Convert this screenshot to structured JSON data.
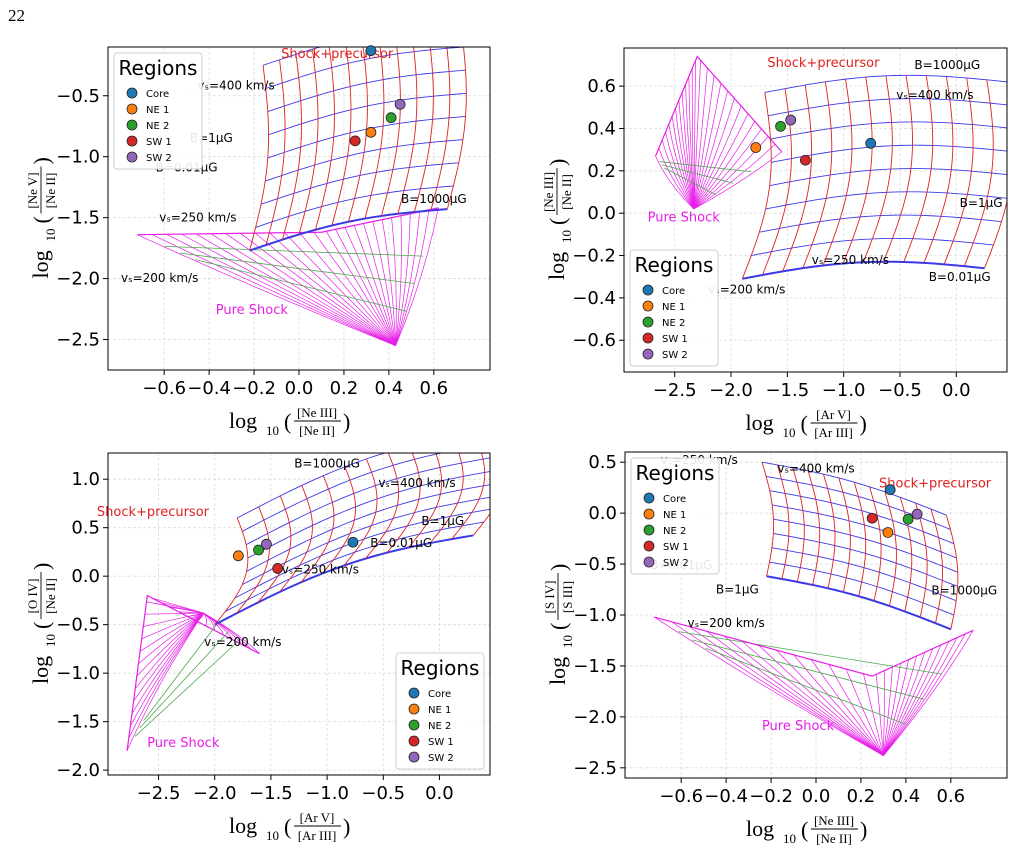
{
  "page_number": "22",
  "colors": {
    "shock_precursor": "#e02020",
    "grid_blue": "#3a3ae8",
    "pure_shock": "#e81ee8",
    "pure_shock_green": "#4aa84a",
    "Core": "#1f77b4",
    "NE 1": "#ff7f0e",
    "NE 2": "#2ca02c",
    "SW 1": "#d62728",
    "SW 2": "#9467bd"
  },
  "chart_data": [
    {
      "type": "scatter",
      "id": "ne5_ne2_vs_ne3_ne2",
      "xlabel": {
        "prefix": "log",
        "sub": "10",
        "num": "[Ne III]",
        "den": "[Ne II]"
      },
      "ylabel": {
        "prefix": "log",
        "sub": "10",
        "num": "[Ne V]",
        "den": "[Ne II]"
      },
      "xlim": [
        -0.85,
        0.85
      ],
      "ylim": [
        -2.75,
        -0.1
      ],
      "xticks": [
        -0.6,
        -0.4,
        -0.2,
        0.0,
        0.2,
        0.4,
        0.6
      ],
      "xtick_labels": [
        "−0.6",
        "−0.4",
        "−0.2",
        "0.0",
        "0.2",
        "0.4",
        "0.6"
      ],
      "yticks": [
        -2.5,
        -2.0,
        -1.5,
        -1.0,
        -0.5
      ],
      "ytick_labels": [
        "−2.5",
        "−2.0",
        "−1.5",
        "−1.0",
        "−0.5"
      ],
      "grid": true,
      "legend": {
        "title": "Regions",
        "placement": "top-left"
      },
      "points": [
        {
          "name": "Core",
          "x": 0.32,
          "y": -0.13
        },
        {
          "name": "NE 1",
          "x": 0.32,
          "y": -0.8
        },
        {
          "name": "NE 2",
          "x": 0.41,
          "y": -0.68
        },
        {
          "name": "SW 1",
          "x": 0.25,
          "y": -0.87
        },
        {
          "name": "SW 2",
          "x": 0.45,
          "y": -0.57
        }
      ],
      "annotations": [
        {
          "text": "Shock+precursor",
          "x": 0.17,
          "y": -0.19,
          "color": "red"
        },
        {
          "text": "vₛ=400 km/s",
          "x": -0.28,
          "y": -0.45,
          "color": "black"
        },
        {
          "text": "B=1μG",
          "x": -0.39,
          "y": -0.88,
          "color": "black"
        },
        {
          "text": "B=0.01μG",
          "x": -0.5,
          "y": -1.12,
          "color": "black"
        },
        {
          "text": "B=1000μG",
          "x": 0.6,
          "y": -1.38,
          "color": "black"
        },
        {
          "text": "vₛ=250 km/s",
          "x": -0.45,
          "y": -1.53,
          "color": "black"
        },
        {
          "text": "vₛ=200 km/s",
          "x": -0.62,
          "y": -2.03,
          "color": "black"
        },
        {
          "text": "Pure Shock",
          "x": -0.21,
          "y": -2.29,
          "color": "magenta"
        }
      ],
      "shock_grid": {
        "origin": [
          -0.22,
          -1.77
        ],
        "u": [
          0.88,
          0.34
        ],
        "v": [
          0.06,
          1.52
        ],
        "bend": 0.1,
        "n_velocity": 13,
        "n_field": 9
      },
      "pure_grid": {
        "origin": [
          -0.72,
          -1.64
        ],
        "fan_point": [
          0.43,
          -2.55
        ],
        "tops": [
          [
            -0.72,
            -1.64
          ],
          [
            0.1,
            -1.62
          ],
          [
            0.62,
            -1.42
          ]
        ],
        "n_lines": 26
      }
    },
    {
      "type": "scatter",
      "id": "ne3_ne2_vs_ar5_ar3",
      "xlabel": {
        "prefix": "log",
        "sub": "10",
        "num": "[Ar V]",
        "den": "[Ar III]"
      },
      "ylabel": {
        "prefix": "log",
        "sub": "10",
        "num": "[Ne III]",
        "den": "[Ne II]"
      },
      "xlim": [
        -2.95,
        0.45
      ],
      "ylim": [
        -0.75,
        0.78
      ],
      "xticks": [
        -2.5,
        -2.0,
        -1.5,
        -1.0,
        -0.5,
        0.0
      ],
      "xtick_labels": [
        "−2.5",
        "−2.0",
        "−1.5",
        "−1.0",
        "−0.5",
        "0.0"
      ],
      "yticks": [
        -0.6,
        -0.4,
        -0.2,
        0.0,
        0.2,
        0.4,
        0.6
      ],
      "ytick_labels": [
        "−0.6",
        "−0.4",
        "−0.2",
        "0.0",
        "0.2",
        "0.4",
        "0.6"
      ],
      "grid": true,
      "legend": {
        "title": "Regions",
        "placement": "bottom-left"
      },
      "points": [
        {
          "name": "Core",
          "x": -0.76,
          "y": 0.33
        },
        {
          "name": "NE 1",
          "x": -1.78,
          "y": 0.31
        },
        {
          "name": "NE 2",
          "x": -1.56,
          "y": 0.41
        },
        {
          "name": "SW 1",
          "x": -1.34,
          "y": 0.25
        },
        {
          "name": "SW 2",
          "x": -1.47,
          "y": 0.44
        }
      ],
      "annotations": [
        {
          "text": "Shock+precursor",
          "x": -1.18,
          "y": 0.69,
          "color": "red"
        },
        {
          "text": "B=1000μG",
          "x": -0.08,
          "y": 0.68,
          "color": "black"
        },
        {
          "text": "vₛ=400 km/s",
          "x": -0.19,
          "y": 0.54,
          "color": "black"
        },
        {
          "text": "B=1μG",
          "x": 0.22,
          "y": 0.03,
          "color": "black"
        },
        {
          "text": "vₛ=250 km/s",
          "x": -0.94,
          "y": -0.24,
          "color": "black"
        },
        {
          "text": "B=0.01μG",
          "x": 0.03,
          "y": -0.32,
          "color": "black"
        },
        {
          "text": "vₛ=200 km/s",
          "x": -1.86,
          "y": -0.38,
          "color": "black"
        },
        {
          "text": "Pure Shock",
          "x": -2.42,
          "y": -0.04,
          "color": "magenta"
        }
      ],
      "shock_grid": {
        "origin": [
          -1.9,
          -0.31
        ],
        "u": [
          2.15,
          0.05
        ],
        "v": [
          0.2,
          0.88
        ],
        "bend": 0.14,
        "n_velocity": 13,
        "n_field": 9
      },
      "pure_grid": {
        "origin": [
          -2.67,
          0.27
        ],
        "fan_point": [
          -2.33,
          0.02
        ],
        "tops": [
          [
            -2.67,
            0.27
          ],
          [
            -2.3,
            0.74
          ],
          [
            -1.55,
            0.29
          ]
        ],
        "n_lines": 26
      }
    },
    {
      "type": "scatter",
      "id": "o4_ne2_vs_ar5_ar3",
      "xlabel": {
        "prefix": "log",
        "sub": "10",
        "num": "[Ar V]",
        "den": "[Ar III]"
      },
      "ylabel": {
        "prefix": "log",
        "sub": "10",
        "num": "[O IV]",
        "den": "[Ne II]"
      },
      "xlim": [
        -2.95,
        0.45
      ],
      "ylim": [
        -2.05,
        1.27
      ],
      "xticks": [
        -2.5,
        -2.0,
        -1.5,
        -1.0,
        -0.5,
        0.0
      ],
      "xtick_labels": [
        "−2.5",
        "−2.0",
        "−1.5",
        "−1.0",
        "−0.5",
        "0.0"
      ],
      "yticks": [
        -2.0,
        -1.5,
        -1.0,
        -0.5,
        0.0,
        0.5,
        1.0
      ],
      "ytick_labels": [
        "−2.0",
        "−1.5",
        "−1.0",
        "−0.5",
        "0.0",
        "0.5",
        "1.0"
      ],
      "grid": true,
      "legend": {
        "title": "Regions",
        "placement": "bottom-right"
      },
      "points": [
        {
          "name": "Core",
          "x": -0.77,
          "y": 0.35
        },
        {
          "name": "NE 1",
          "x": -1.79,
          "y": 0.21
        },
        {
          "name": "NE 2",
          "x": -1.61,
          "y": 0.27
        },
        {
          "name": "SW 1",
          "x": -1.44,
          "y": 0.08
        },
        {
          "name": "SW 2",
          "x": -1.54,
          "y": 0.33
        }
      ],
      "annotations": [
        {
          "text": "B=1000μG",
          "x": -1.0,
          "y": 1.12,
          "color": "black"
        },
        {
          "text": "vₛ=400 km/s",
          "x": -0.2,
          "y": 0.92,
          "color": "black"
        },
        {
          "text": "Shock+precursor",
          "x": -2.55,
          "y": 0.62,
          "color": "red"
        },
        {
          "text": "B=1μG",
          "x": 0.03,
          "y": 0.53,
          "color": "black"
        },
        {
          "text": "B=0.01μG",
          "x": -0.34,
          "y": 0.3,
          "color": "black"
        },
        {
          "text": "vₛ=250 km/s",
          "x": -1.06,
          "y": 0.03,
          "color": "black"
        },
        {
          "text": "vₛ=200 km/s",
          "x": -1.75,
          "y": -0.72,
          "color": "black"
        },
        {
          "text": "Pure Shock",
          "x": -2.28,
          "y": -1.76,
          "color": "magenta"
        }
      ],
      "shock_grid": {
        "origin": [
          -2.0,
          -0.5
        ],
        "u": [
          2.3,
          0.92
        ],
        "v": [
          0.2,
          1.1
        ],
        "bend": 0.18,
        "n_velocity": 13,
        "n_field": 9
      },
      "pure_grid": {
        "origin": [
          -2.78,
          -1.8
        ],
        "fan_point": [
          -2.1,
          -0.38
        ],
        "tops": [
          [
            -2.78,
            -1.8
          ],
          [
            -2.6,
            -0.2
          ],
          [
            -1.6,
            -0.8
          ]
        ],
        "n_lines": 26
      }
    },
    {
      "type": "scatter",
      "id": "s4_s3_vs_ne3_ne2",
      "xlabel": {
        "prefix": "log",
        "sub": "10",
        "num": "[Ne III]",
        "den": "[Ne II]"
      },
      "ylabel": {
        "prefix": "log",
        "sub": "10",
        "num": "[S IV]",
        "den": "[S III]"
      },
      "xlim": [
        -0.85,
        0.85
      ],
      "ylim": [
        -2.6,
        0.6
      ],
      "xticks": [
        -0.6,
        -0.4,
        -0.2,
        0.0,
        0.2,
        0.4,
        0.6
      ],
      "xtick_labels": [
        "−0.6",
        "−0.4",
        "−0.2",
        "0.0",
        "0.2",
        "0.4",
        "0.6"
      ],
      "yticks": [
        -2.5,
        -2.0,
        -1.5,
        -1.0,
        -0.5,
        0.0,
        0.5
      ],
      "ytick_labels": [
        "−2.5",
        "−2.0",
        "−1.5",
        "−1.0",
        "−0.5",
        "0.0",
        "0.5"
      ],
      "grid": true,
      "legend": {
        "title": "Regions",
        "placement": "top-left"
      },
      "points": [
        {
          "name": "Core",
          "x": 0.33,
          "y": 0.23
        },
        {
          "name": "NE 1",
          "x": 0.32,
          "y": -0.19
        },
        {
          "name": "NE 2",
          "x": 0.41,
          "y": -0.06
        },
        {
          "name": "SW 1",
          "x": 0.25,
          "y": -0.05
        },
        {
          "name": "SW 2",
          "x": 0.45,
          "y": -0.01
        }
      ],
      "annotations": [
        {
          "text": "vₛ=250 km/s",
          "x": -0.52,
          "y": 0.48,
          "color": "black"
        },
        {
          "text": "vₛ=400 km/s",
          "x": 0.0,
          "y": 0.4,
          "color": "black"
        },
        {
          "text": "Shock+precursor",
          "x": 0.53,
          "y": 0.25,
          "color": "red"
        },
        {
          "text": "B=0.01μG",
          "x": -0.6,
          "y": -0.55,
          "color": "black"
        },
        {
          "text": "B=1μG",
          "x": -0.35,
          "y": -0.79,
          "color": "black"
        },
        {
          "text": "B=1000μG",
          "x": 0.66,
          "y": -0.8,
          "color": "black"
        },
        {
          "text": "vₛ=200 km/s",
          "x": -0.4,
          "y": -1.12,
          "color": "black"
        },
        {
          "text": "Pure Shock",
          "x": -0.08,
          "y": -2.13,
          "color": "magenta"
        }
      ],
      "shock_grid": {
        "origin": [
          -0.22,
          -0.62
        ],
        "u": [
          0.82,
          -0.52
        ],
        "v": [
          -0.02,
          1.12
        ],
        "bend": 0.08,
        "n_velocity": 13,
        "n_field": 9
      },
      "pure_grid": {
        "origin": [
          -0.72,
          -1.02
        ],
        "fan_point": [
          0.3,
          -2.38
        ],
        "tops": [
          [
            -0.72,
            -1.02
          ],
          [
            0.25,
            -1.6
          ],
          [
            0.7,
            -1.15
          ]
        ],
        "n_lines": 26
      }
    }
  ]
}
